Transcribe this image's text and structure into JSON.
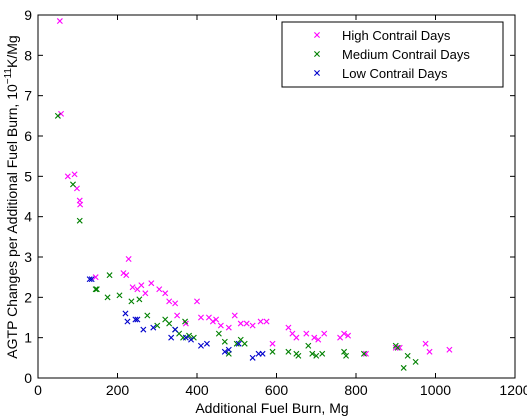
{
  "chart_data": {
    "type": "scatter",
    "xlabel": "Additional Fuel Burn, Mg",
    "ylabel_prefix": "AGTP Changes per Additional Fuel Burn, 10",
    "ylabel_exponent": "−11",
    "ylabel_suffix": "K/Mg",
    "xlim": [
      0,
      1200
    ],
    "ylim": [
      0,
      9
    ],
    "xticks": [
      0,
      200,
      400,
      600,
      800,
      1000,
      1200
    ],
    "yticks": [
      0,
      1,
      2,
      3,
      4,
      5,
      6,
      7,
      8,
      9
    ],
    "grid": false,
    "legend_position": "top-right",
    "series": [
      {
        "name": "High Contrail Days",
        "color": "#ff00ff",
        "marker": "x",
        "points": [
          [
            55,
            8.85
          ],
          [
            58,
            6.55
          ],
          [
            75,
            5.0
          ],
          [
            92,
            5.05
          ],
          [
            98,
            4.7
          ],
          [
            105,
            4.4
          ],
          [
            106,
            4.3
          ],
          [
            145,
            2.5
          ],
          [
            215,
            2.6
          ],
          [
            222,
            2.55
          ],
          [
            228,
            2.95
          ],
          [
            238,
            2.25
          ],
          [
            250,
            2.2
          ],
          [
            260,
            2.3
          ],
          [
            270,
            2.1
          ],
          [
            285,
            2.35
          ],
          [
            305,
            2.2
          ],
          [
            320,
            2.1
          ],
          [
            330,
            1.9
          ],
          [
            345,
            1.85
          ],
          [
            350,
            1.55
          ],
          [
            372,
            1.35
          ],
          [
            400,
            1.9
          ],
          [
            410,
            1.5
          ],
          [
            430,
            1.5
          ],
          [
            440,
            1.4
          ],
          [
            448,
            1.45
          ],
          [
            460,
            1.3
          ],
          [
            480,
            1.25
          ],
          [
            495,
            1.55
          ],
          [
            510,
            1.35
          ],
          [
            525,
            1.35
          ],
          [
            540,
            1.3
          ],
          [
            560,
            1.4
          ],
          [
            575,
            1.4
          ],
          [
            590,
            0.85
          ],
          [
            630,
            1.25
          ],
          [
            640,
            1.1
          ],
          [
            650,
            1.0
          ],
          [
            675,
            1.1
          ],
          [
            695,
            1.0
          ],
          [
            705,
            0.95
          ],
          [
            720,
            1.1
          ],
          [
            760,
            1.0
          ],
          [
            770,
            1.1
          ],
          [
            780,
            1.05
          ],
          [
            825,
            0.6
          ],
          [
            900,
            0.75
          ],
          [
            910,
            0.75
          ],
          [
            975,
            0.85
          ],
          [
            985,
            0.65
          ],
          [
            1035,
            0.7
          ]
        ]
      },
      {
        "name": "Medium Contrail Days",
        "color": "#008000",
        "marker": "x",
        "points": [
          [
            50,
            6.5
          ],
          [
            88,
            4.8
          ],
          [
            105,
            3.9
          ],
          [
            145,
            2.2
          ],
          [
            148,
            2.2
          ],
          [
            175,
            2.0
          ],
          [
            180,
            2.55
          ],
          [
            205,
            2.05
          ],
          [
            235,
            1.9
          ],
          [
            255,
            1.95
          ],
          [
            275,
            1.55
          ],
          [
            300,
            1.3
          ],
          [
            320,
            1.45
          ],
          [
            330,
            1.35
          ],
          [
            345,
            1.2
          ],
          [
            355,
            1.1
          ],
          [
            365,
            1.0
          ],
          [
            370,
            1.4
          ],
          [
            380,
            1.05
          ],
          [
            392,
            1.0
          ],
          [
            455,
            1.1
          ],
          [
            470,
            0.9
          ],
          [
            480,
            0.6
          ],
          [
            500,
            0.85
          ],
          [
            510,
            0.95
          ],
          [
            520,
            0.85
          ],
          [
            590,
            0.65
          ],
          [
            630,
            0.65
          ],
          [
            650,
            0.6
          ],
          [
            655,
            0.55
          ],
          [
            680,
            0.8
          ],
          [
            690,
            0.6
          ],
          [
            700,
            0.55
          ],
          [
            715,
            0.6
          ],
          [
            770,
            0.65
          ],
          [
            775,
            0.55
          ],
          [
            820,
            0.6
          ],
          [
            900,
            0.8
          ],
          [
            905,
            0.75
          ],
          [
            920,
            0.25
          ],
          [
            930,
            0.55
          ],
          [
            950,
            0.4
          ]
        ]
      },
      {
        "name": "Low Contrail Days",
        "color": "#0000cc",
        "marker": "x",
        "points": [
          [
            130,
            2.45
          ],
          [
            135,
            2.45
          ],
          [
            220,
            1.6
          ],
          [
            225,
            1.4
          ],
          [
            245,
            1.45
          ],
          [
            250,
            1.45
          ],
          [
            265,
            1.2
          ],
          [
            290,
            1.25
          ],
          [
            335,
            1.0
          ],
          [
            345,
            1.2
          ],
          [
            372,
            1.0
          ],
          [
            385,
            0.95
          ],
          [
            410,
            0.8
          ],
          [
            425,
            0.85
          ],
          [
            470,
            0.65
          ],
          [
            480,
            0.7
          ],
          [
            505,
            0.85
          ],
          [
            540,
            0.5
          ],
          [
            555,
            0.6
          ],
          [
            565,
            0.6
          ]
        ]
      }
    ]
  }
}
